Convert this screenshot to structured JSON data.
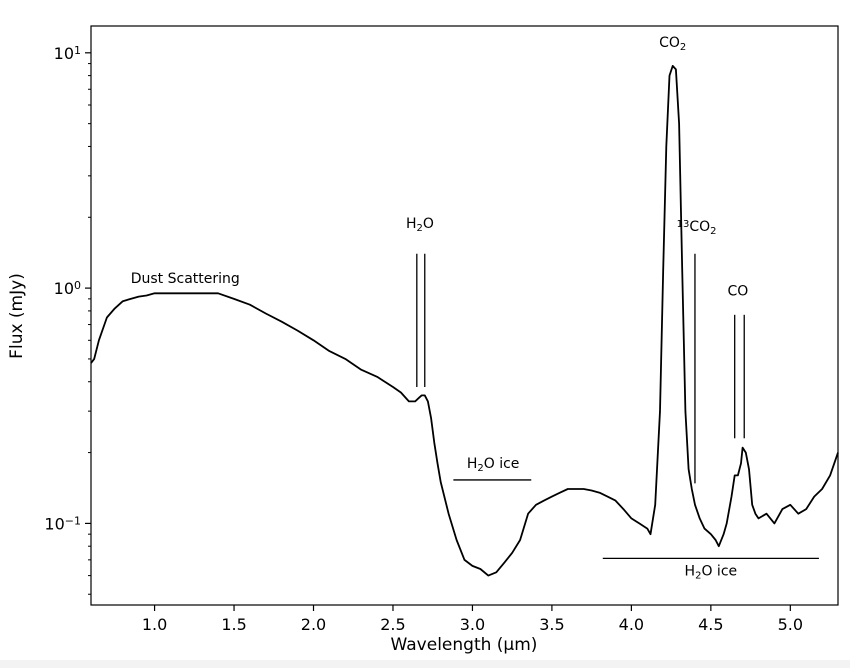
{
  "chart_data": {
    "type": "line",
    "title": "",
    "xlabel": "Wavelength (μm)",
    "ylabel": "Flux (mJy)",
    "yscale": "log",
    "xlim": [
      0.6,
      5.3
    ],
    "ylim": [
      0.045,
      13
    ],
    "grid": false,
    "legend": "none",
    "line_color": "#000000",
    "x_ticks": [
      {
        "value": 1.0,
        "label": "1.0"
      },
      {
        "value": 1.5,
        "label": "1.5"
      },
      {
        "value": 2.0,
        "label": "2.0"
      },
      {
        "value": 2.5,
        "label": "2.5"
      },
      {
        "value": 3.0,
        "label": "3.0"
      },
      {
        "value": 3.5,
        "label": "3.5"
      },
      {
        "value": 4.0,
        "label": "4.0"
      },
      {
        "value": 4.5,
        "label": "4.5"
      },
      {
        "value": 5.0,
        "label": "5.0"
      }
    ],
    "y_ticks": [
      {
        "value": 0.1,
        "base": "10",
        "exp": "−1"
      },
      {
        "value": 1,
        "base": "10",
        "exp": "0"
      },
      {
        "value": 10,
        "base": "10",
        "exp": "1"
      }
    ],
    "series": [
      {
        "x": [
          0.6,
          0.62,
          0.65,
          0.7,
          0.75,
          0.8,
          0.85,
          0.9,
          0.95,
          1.0,
          1.05,
          1.1,
          1.2,
          1.3,
          1.4,
          1.5,
          1.6,
          1.7,
          1.8,
          1.9,
          2.0,
          2.1,
          2.2,
          2.3,
          2.4,
          2.5,
          2.55,
          2.6,
          2.62,
          2.64,
          2.66,
          2.68,
          2.7,
          2.72,
          2.74,
          2.76,
          2.78,
          2.8,
          2.85,
          2.9,
          2.95,
          3.0,
          3.05,
          3.1,
          3.15,
          3.2,
          3.25,
          3.3,
          3.35,
          3.4,
          3.45,
          3.5,
          3.55,
          3.6,
          3.65,
          3.7,
          3.75,
          3.8,
          3.85,
          3.9,
          3.95,
          4.0,
          4.05,
          4.1,
          4.12,
          4.15,
          4.18,
          4.2,
          4.22,
          4.24,
          4.26,
          4.28,
          4.3,
          4.32,
          4.34,
          4.36,
          4.38,
          4.4,
          4.43,
          4.46,
          4.5,
          4.53,
          4.55,
          4.58,
          4.6,
          4.63,
          4.65,
          4.67,
          4.69,
          4.7,
          4.72,
          4.74,
          4.76,
          4.78,
          4.8,
          4.85,
          4.9,
          4.95,
          5.0,
          5.05,
          5.1,
          5.15,
          5.2,
          5.25,
          5.3
        ],
        "y": [
          0.48,
          0.5,
          0.6,
          0.75,
          0.82,
          0.88,
          0.9,
          0.92,
          0.93,
          0.95,
          0.95,
          0.95,
          0.95,
          0.95,
          0.95,
          0.9,
          0.85,
          0.78,
          0.72,
          0.66,
          0.6,
          0.54,
          0.5,
          0.45,
          0.42,
          0.38,
          0.36,
          0.33,
          0.33,
          0.33,
          0.34,
          0.35,
          0.35,
          0.33,
          0.28,
          0.22,
          0.18,
          0.15,
          0.11,
          0.085,
          0.07,
          0.066,
          0.064,
          0.06,
          0.062,
          0.068,
          0.075,
          0.085,
          0.11,
          0.12,
          0.125,
          0.13,
          0.135,
          0.14,
          0.14,
          0.14,
          0.138,
          0.135,
          0.13,
          0.125,
          0.115,
          0.105,
          0.1,
          0.095,
          0.09,
          0.12,
          0.3,
          1.2,
          4.0,
          8.0,
          8.8,
          8.5,
          5.0,
          1.2,
          0.3,
          0.17,
          0.14,
          0.12,
          0.105,
          0.095,
          0.09,
          0.085,
          0.08,
          0.09,
          0.1,
          0.13,
          0.16,
          0.16,
          0.18,
          0.21,
          0.2,
          0.17,
          0.12,
          0.11,
          0.105,
          0.11,
          0.1,
          0.115,
          0.12,
          0.11,
          0.115,
          0.13,
          0.14,
          0.16,
          0.2
        ]
      }
    ],
    "annotations": [
      {
        "text": "Dust Scattering",
        "x": 0.85,
        "y": 1.05
      },
      {
        "parts": [
          "H",
          "2",
          "O"
        ],
        "x": 2.67,
        "y": 1.8,
        "lines_x": [
          2.65,
          2.7
        ],
        "lines_y": [
          0.38,
          1.4
        ]
      },
      {
        "parts": [
          "CO",
          "2"
        ],
        "x": 4.26,
        "y": 10.6
      },
      {
        "parts": [
          "13",
          "CO",
          "2"
        ],
        "x": 4.41,
        "y": 1.75,
        "lines_x": [
          4.4
        ],
        "lines_y": [
          0.148,
          1.4
        ]
      },
      {
        "text": "CO",
        "x": 4.67,
        "y": 0.93,
        "lines_x": [
          4.65,
          4.71
        ],
        "lines_y": [
          0.23,
          0.77
        ]
      },
      {
        "parts": [
          "H",
          "2",
          "O ice"
        ],
        "x": 3.13,
        "y": 0.172,
        "bar_x": [
          2.88,
          3.37
        ],
        "bar_y": 0.153
      },
      {
        "parts": [
          "H",
          "2",
          "O ice"
        ],
        "x": 4.5,
        "y": 0.06,
        "bar_x": [
          3.82,
          5.18
        ],
        "bar_y": 0.071
      }
    ]
  }
}
